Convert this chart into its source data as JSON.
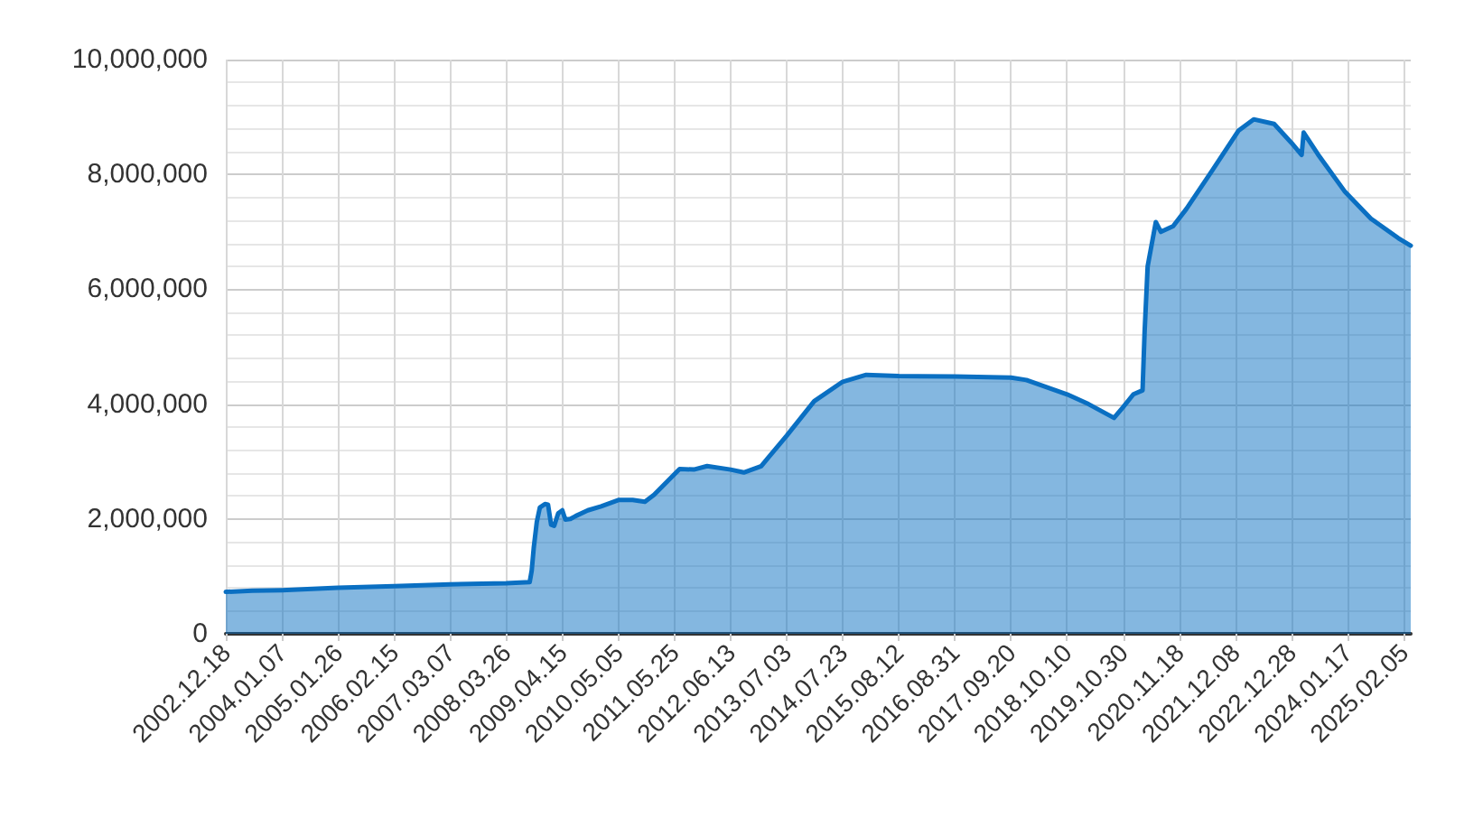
{
  "chart_data": {
    "type": "area",
    "color": "#0a6fc2",
    "grid": true,
    "marker": "none",
    "line_style": "solid",
    "xlim": [
      "2002-12-18",
      "2025-03-26"
    ],
    "xticks": [
      {
        "value": "2002-12-18",
        "label": "2002.12.18"
      },
      {
        "value": "2004-01-07",
        "label": "2004.01.07"
      },
      {
        "value": "2005-01-26",
        "label": "2005.01.26"
      },
      {
        "value": "2006-02-15",
        "label": "2006.02.15"
      },
      {
        "value": "2007-03-07",
        "label": "2007.03.07"
      },
      {
        "value": "2008-03-26",
        "label": "2008.03.26"
      },
      {
        "value": "2009-04-15",
        "label": "2009.04.15"
      },
      {
        "value": "2010-05-05",
        "label": "2010.05.05"
      },
      {
        "value": "2011-05-25",
        "label": "2011.05.25"
      },
      {
        "value": "2012-06-13",
        "label": "2012.06.13"
      },
      {
        "value": "2013-07-03",
        "label": "2013.07.03"
      },
      {
        "value": "2014-07-23",
        "label": "2014.07.23"
      },
      {
        "value": "2015-08-12",
        "label": "2015.08.12"
      },
      {
        "value": "2016-08-31",
        "label": "2016.08.31"
      },
      {
        "value": "2017-09-20",
        "label": "2017.09.20"
      },
      {
        "value": "2018-10-10",
        "label": "2018.10.10"
      },
      {
        "value": "2019-10-30",
        "label": "2019.10.30"
      },
      {
        "value": "2020-11-18",
        "label": "2020.11.18"
      },
      {
        "value": "2021-12-08",
        "label": "2021.12.08"
      },
      {
        "value": "2022-12-28",
        "label": "2022.12.28"
      },
      {
        "value": "2024-01-17",
        "label": "2024.01.17"
      },
      {
        "value": "2025-02-05",
        "label": "2025.02.05"
      }
    ],
    "ylim": [
      0,
      10000000
    ],
    "yticks": [
      {
        "value": 0,
        "label": "0"
      },
      {
        "value": 400000,
        "label": null
      },
      {
        "value": 800000,
        "label": null
      },
      {
        "value": 1200000,
        "label": null
      },
      {
        "value": 1600000,
        "label": null
      },
      {
        "value": 2000000,
        "label": "2,000,000"
      },
      {
        "value": 2400000,
        "label": null
      },
      {
        "value": 2800000,
        "label": null
      },
      {
        "value": 3200000,
        "label": null
      },
      {
        "value": 3600000,
        "label": null
      },
      {
        "value": 4000000,
        "label": "4,000,000"
      },
      {
        "value": 4400000,
        "label": null
      },
      {
        "value": 4800000,
        "label": null
      },
      {
        "value": 5200000,
        "label": null
      },
      {
        "value": 5600000,
        "label": null
      },
      {
        "value": 6000000,
        "label": "6,000,000"
      },
      {
        "value": 6400000,
        "label": null
      },
      {
        "value": 6800000,
        "label": null
      },
      {
        "value": 7200000,
        "label": null
      },
      {
        "value": 7600000,
        "label": null
      },
      {
        "value": 8000000,
        "label": "8,000,000"
      },
      {
        "value": 8400000,
        "label": null
      },
      {
        "value": 8800000,
        "label": null
      },
      {
        "value": 9200000,
        "label": null
      },
      {
        "value": 9600000,
        "label": null
      },
      {
        "value": 10000000,
        "label": "10,000,000"
      }
    ],
    "x": [
      "2002-12-18",
      "2003-06-18",
      "2004-01-07",
      "2005-01-26",
      "2006-02-15",
      "2007-03-07",
      "2008-03-26",
      "2008-09-03",
      "2008-09-17",
      "2008-10-01",
      "2008-10-22",
      "2008-11-12",
      "2008-12-17",
      "2009-01-07",
      "2009-01-28",
      "2009-02-18",
      "2009-03-18",
      "2009-04-15",
      "2009-05-06",
      "2009-06-10",
      "2009-07-15",
      "2009-10-07",
      "2010-01-06",
      "2010-05-05",
      "2010-08-11",
      "2010-11-03",
      "2011-01-05",
      "2011-06-29",
      "2011-10-05",
      "2012-01-04",
      "2012-06-13",
      "2012-09-12",
      "2013-01-09",
      "2013-07-03",
      "2014-01-08",
      "2014-07-23",
      "2014-12-31",
      "2015-08-12",
      "2016-08-31",
      "2017-09-20",
      "2018-01-03",
      "2018-10-10",
      "2019-03-06",
      "2019-08-28",
      "2019-10-30",
      "2020-01-08",
      "2020-03-11",
      "2020-03-25",
      "2020-04-15",
      "2020-06-10",
      "2020-07-15",
      "2020-10-07",
      "2021-01-06",
      "2021-06-30",
      "2021-12-29",
      "2022-04-13",
      "2022-08-31",
      "2022-12-28",
      "2023-03-08",
      "2023-03-22",
      "2023-06-28",
      "2023-12-27",
      "2024-06-26",
      "2024-12-31",
      "2025-03-26"
    ],
    "values": [
      730000,
      750000,
      760000,
      800000,
      830000,
      860000,
      880000,
      900000,
      1100000,
      1500000,
      1950000,
      2200000,
      2260000,
      2250000,
      1900000,
      1880000,
      2100000,
      2150000,
      1990000,
      2000000,
      2050000,
      2150000,
      2220000,
      2330000,
      2330000,
      2300000,
      2420000,
      2870000,
      2860000,
      2920000,
      2860000,
      2810000,
      2920000,
      3450000,
      4050000,
      4390000,
      4510000,
      4490000,
      4480000,
      4460000,
      4420000,
      4170000,
      4000000,
      3760000,
      3950000,
      4170000,
      4240000,
      5250000,
      6400000,
      7170000,
      7000000,
      7100000,
      7400000,
      8060000,
      8760000,
      8960000,
      8880000,
      8550000,
      8340000,
      8730000,
      8350000,
      7710000,
      7230000,
      6890000,
      6760000
    ]
  }
}
